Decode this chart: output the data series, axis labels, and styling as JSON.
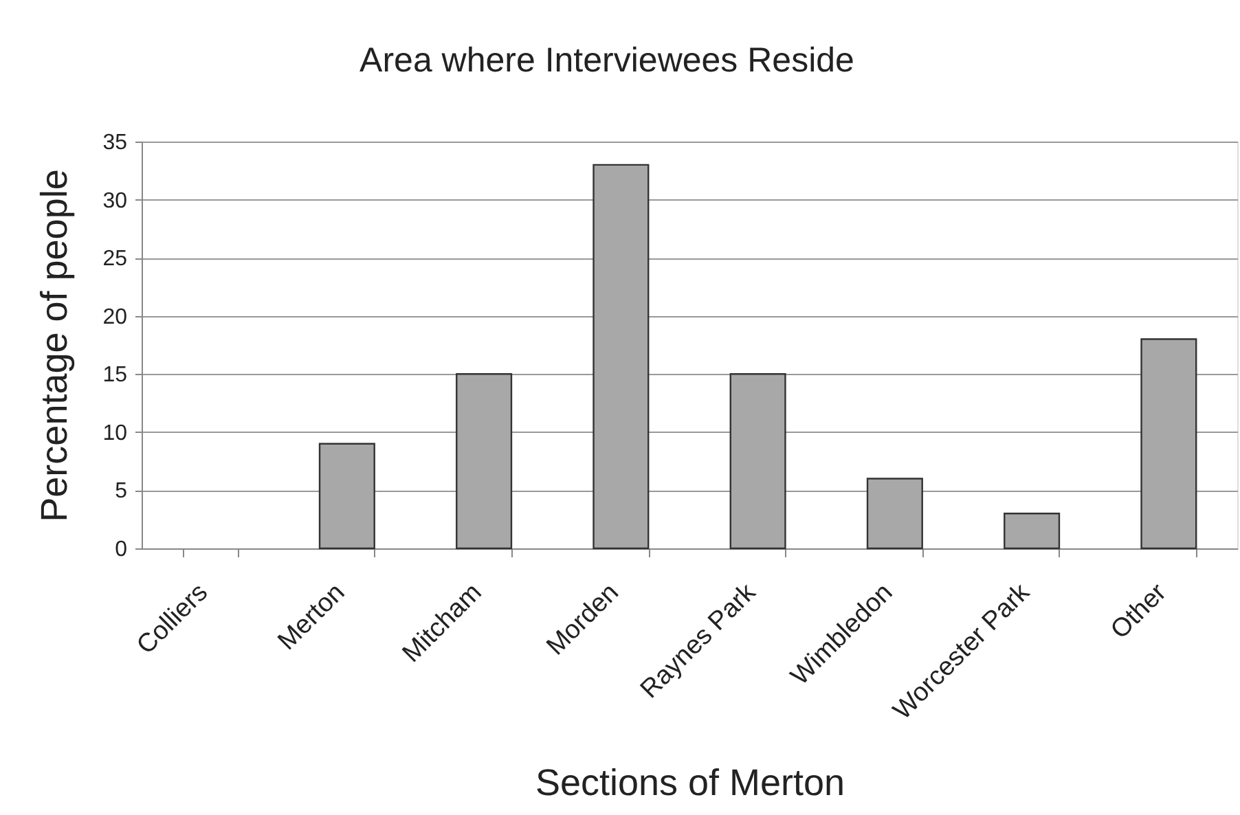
{
  "chart_data": {
    "type": "bar",
    "title": "Area where Interviewees Reside",
    "xlabel": "Sections of Merton",
    "ylabel": "Percentage of people",
    "categories": [
      "Colliers",
      "Merton",
      "Mitcham",
      "Morden",
      "Raynes Park",
      "Wimbledon",
      "Worcester Park",
      "Other"
    ],
    "values": [
      0,
      9,
      15,
      33,
      15,
      6,
      3,
      18
    ],
    "color": "#a8a8a8",
    "ylim": [
      0,
      35
    ],
    "yticks": [
      0,
      5,
      10,
      15,
      20,
      25,
      30,
      35
    ],
    "grid": "y"
  }
}
